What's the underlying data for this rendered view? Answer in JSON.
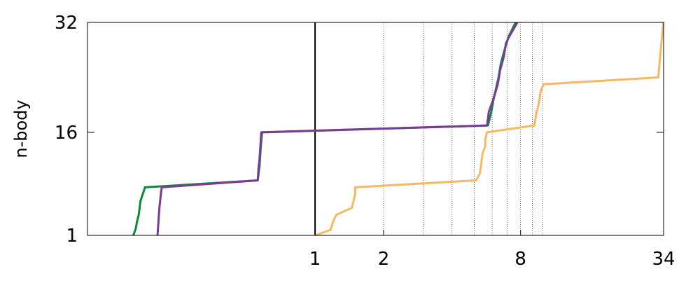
{
  "chart_data": {
    "type": "line",
    "title": "",
    "xlabel": "",
    "ylabel": "n-body",
    "x_scale": "log2",
    "xlim": [
      0.1,
      34
    ],
    "ylim": [
      1,
      32
    ],
    "x_ticks": [
      {
        "value": 1,
        "label": "1"
      },
      {
        "value": 2,
        "label": "2"
      },
      {
        "value": 8,
        "label": "8"
      },
      {
        "value": 34,
        "label": "34"
      }
    ],
    "y_ticks": [
      {
        "value": 1,
        "label": "1"
      },
      {
        "value": 16,
        "label": "16"
      },
      {
        "value": 32,
        "label": "32"
      }
    ],
    "reference_line_x": 1,
    "grid_x": [
      2,
      3,
      4,
      5,
      6,
      7,
      8,
      9,
      10
    ],
    "series": [
      {
        "color": "#0a8a3a",
        "points": [
          [
            0.159,
            1
          ],
          [
            0.163,
            2
          ],
          [
            0.165,
            3
          ],
          [
            0.168,
            4
          ],
          [
            0.171,
            6
          ],
          [
            0.179,
            8
          ],
          [
            0.56,
            9
          ],
          [
            0.57,
            11
          ],
          [
            0.575,
            13
          ],
          [
            0.578,
            14
          ],
          [
            0.585,
            16
          ],
          [
            5.75,
            17
          ],
          [
            5.95,
            19
          ],
          [
            6.1,
            21
          ],
          [
            6.2,
            22
          ],
          [
            6.4,
            24
          ],
          [
            6.55,
            26
          ],
          [
            6.8,
            28
          ],
          [
            7.1,
            30
          ],
          [
            7.6,
            32
          ]
        ]
      },
      {
        "color": "#7a3b96",
        "points": [
          [
            0.203,
            1
          ],
          [
            0.204,
            2
          ],
          [
            0.205,
            3
          ],
          [
            0.206,
            4
          ],
          [
            0.207,
            5
          ],
          [
            0.21,
            7
          ],
          [
            0.212,
            8
          ],
          [
            0.56,
            9
          ],
          [
            0.565,
            11
          ],
          [
            0.57,
            12
          ],
          [
            0.575,
            14
          ],
          [
            0.58,
            16
          ],
          [
            5.7,
            17
          ],
          [
            5.8,
            19
          ],
          [
            5.95,
            20
          ],
          [
            6.1,
            21
          ],
          [
            6.35,
            23
          ],
          [
            6.5,
            25
          ],
          [
            6.75,
            27
          ],
          [
            6.9,
            29
          ],
          [
            7.15,
            30
          ],
          [
            7.75,
            32
          ]
        ]
      },
      {
        "color": "#f8b862",
        "points": [
          [
            1,
            1
          ],
          [
            1.17,
            1.8
          ],
          [
            1.2,
            3
          ],
          [
            1.24,
            4
          ],
          [
            1.45,
            5
          ],
          [
            1.5,
            7
          ],
          [
            1.5,
            8
          ],
          [
            5.1,
            9
          ],
          [
            5.3,
            10
          ],
          [
            5.4,
            12
          ],
          [
            5.45,
            13
          ],
          [
            5.6,
            14
          ],
          [
            5.6,
            15
          ],
          [
            5.7,
            16
          ],
          [
            9.2,
            17
          ],
          [
            9.4,
            19
          ],
          [
            9.6,
            20
          ],
          [
            9.8,
            22
          ],
          [
            10.1,
            23
          ],
          [
            32.2,
            24
          ],
          [
            33.7,
            31
          ],
          [
            34,
            32
          ]
        ]
      }
    ]
  }
}
